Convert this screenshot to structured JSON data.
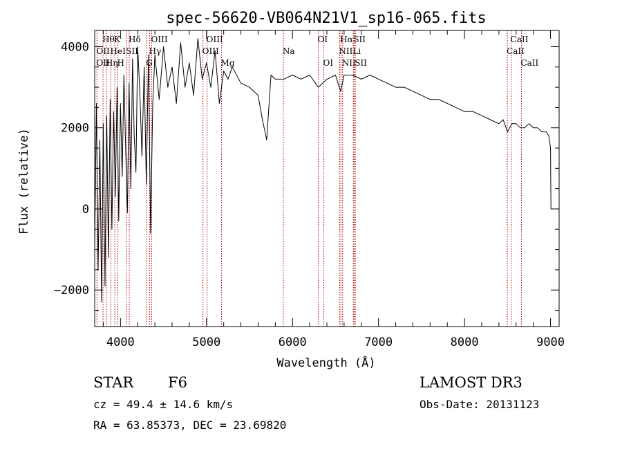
{
  "chart_data": {
    "type": "line",
    "title": "spec-56620-VB064N21V1_sp16-065.fits",
    "xlabel": "Wavelength (Å)",
    "ylabel": "Flux (relative)",
    "xlim": [
      3700,
      9100
    ],
    "ylim": [
      -2900,
      4400
    ],
    "x_ticks": [
      4000,
      5000,
      6000,
      7000,
      8000,
      9000
    ],
    "x_tick_labels": [
      "4000",
      "5000",
      "6000",
      "7000",
      "8000",
      "9000"
    ],
    "y_ticks": [
      -2000,
      0,
      2000,
      4000
    ],
    "y_tick_labels": [
      "−2000",
      "0",
      "2000",
      "4000"
    ],
    "series": [
      {
        "name": "flux",
        "x": [
          3700,
          3720,
          3740,
          3760,
          3780,
          3800,
          3820,
          3840,
          3860,
          3880,
          3900,
          3920,
          3940,
          3960,
          3980,
          4000,
          4020,
          4040,
          4060,
          4080,
          4100,
          4120,
          4140,
          4160,
          4180,
          4200,
          4225,
          4250,
          4275,
          4300,
          4325,
          4350,
          4375,
          4400,
          4450,
          4500,
          4550,
          4600,
          4650,
          4700,
          4750,
          4800,
          4850,
          4900,
          4950,
          5000,
          5050,
          5100,
          5150,
          5200,
          5250,
          5300,
          5400,
          5500,
          5600,
          5650,
          5700,
          5750,
          5800,
          5900,
          6000,
          6100,
          6200,
          6300,
          6400,
          6500,
          6560,
          6600,
          6700,
          6800,
          6900,
          7000,
          7100,
          7200,
          7300,
          7400,
          7500,
          7600,
          7700,
          7800,
          7900,
          8000,
          8100,
          8200,
          8300,
          8400,
          8450,
          8500,
          8550,
          8600,
          8650,
          8700,
          8750,
          8800,
          8850,
          8900,
          8950,
          8980,
          9000,
          9005
        ],
        "values": [
          -1000,
          2600,
          -1500,
          1700,
          -2300,
          2100,
          -1900,
          2300,
          -1200,
          2700,
          -500,
          2400,
          300,
          3000,
          -300,
          2600,
          800,
          3300,
          1500,
          -100,
          3100,
          500,
          3700,
          1800,
          900,
          4000,
          2900,
          1300,
          3500,
          600,
          3800,
          -600,
          2600,
          3800,
          2700,
          4000,
          3000,
          3500,
          2600,
          4100,
          3000,
          3600,
          2800,
          4200,
          3200,
          3600,
          3000,
          3900,
          2600,
          3400,
          3200,
          3500,
          3100,
          3000,
          2800,
          2200,
          1700,
          3300,
          3200,
          3200,
          3300,
          3200,
          3300,
          3000,
          3200,
          3300,
          2900,
          3300,
          3300,
          3200,
          3300,
          3200,
          3100,
          3000,
          3000,
          2900,
          2800,
          2700,
          2700,
          2600,
          2500,
          2400,
          2400,
          2300,
          2200,
          2100,
          2200,
          1900,
          2100,
          2100,
          2000,
          2000,
          2100,
          2000,
          2000,
          1900,
          1900,
          1800,
          1500,
          0
        ]
      }
    ],
    "line_markers": [
      {
        "label": "Hθ",
        "x": 3797,
        "row": 1
      },
      {
        "label": "OII",
        "x": 3727,
        "row": 2
      },
      {
        "label": "OIII",
        "x": 3727,
        "row": 3
      },
      {
        "label": "Hη",
        "x": 3835,
        "row": 3
      },
      {
        "label": "HeI",
        "x": 3889,
        "row": 2
      },
      {
        "label": "K",
        "x": 3934,
        "row": 1
      },
      {
        "label": "H",
        "x": 3969,
        "row": 3
      },
      {
        "label": "SII",
        "x": 4072,
        "row": 2
      },
      {
        "label": "Hδ",
        "x": 4102,
        "row": 1
      },
      {
        "label": "OIII",
        "x": 4363,
        "row": 1
      },
      {
        "label": "Hγ",
        "x": 4340,
        "row": 2
      },
      {
        "label": "G",
        "x": 4305,
        "row": 3
      },
      {
        "label": "OIII",
        "x": 5007,
        "row": 1
      },
      {
        "label": "OIII",
        "x": 4959,
        "row": 2
      },
      {
        "label": "Mg",
        "x": 5175,
        "row": 3
      },
      {
        "label": "Na",
        "x": 5893,
        "row": 2
      },
      {
        "label": "OI",
        "x": 6300,
        "row": 1
      },
      {
        "label": "OI",
        "x": 6364,
        "row": 3
      },
      {
        "label": "Hα",
        "x": 6563,
        "row": 1
      },
      {
        "label": "NII",
        "x": 6548,
        "row": 2
      },
      {
        "label": "NII",
        "x": 6583,
        "row": 3
      },
      {
        "label": "SII",
        "x": 6716,
        "row": 1
      },
      {
        "label": "Li",
        "x": 6708,
        "row": 2
      },
      {
        "label": "SII",
        "x": 6731,
        "row": 3
      },
      {
        "label": "CaII",
        "x": 8542,
        "row": 1
      },
      {
        "label": "CaII",
        "x": 8498,
        "row": 2
      },
      {
        "label": "CaII",
        "x": 8662,
        "row": 3
      }
    ],
    "colors": {
      "spectrum": "#000000",
      "marker": "#b00000",
      "axis": "#000000"
    }
  },
  "info": {
    "object_class": "STAR",
    "subclass": "F6",
    "survey": "LAMOST DR3",
    "cz": "cz = 49.4 ± 14.6 km/s",
    "obs_date": "Obs-Date: 20131123",
    "coords": "RA =  63.85373, DEC =  23.69820"
  }
}
